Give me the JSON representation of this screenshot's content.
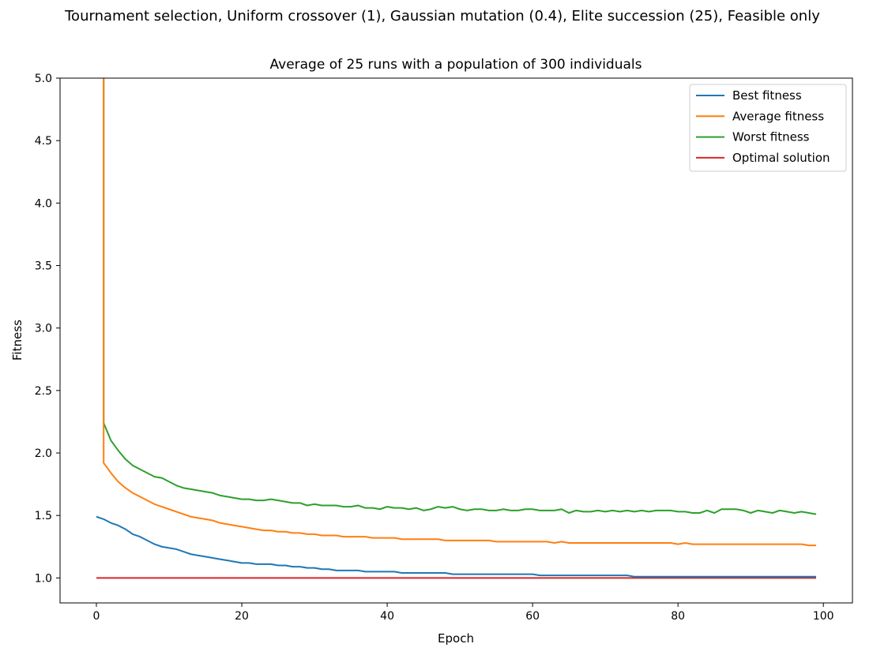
{
  "figure": {
    "suptitle": "Tournament selection, Uniform crossover (1), Gaussian mutation (0.4), Elite succession (25), Feasible only"
  },
  "chart_data": {
    "type": "line",
    "title": "Average of 25 runs with a population of 300 individuals",
    "xlabel": "Epoch",
    "ylabel": "Fitness",
    "xlim": [
      -5,
      104
    ],
    "ylim": [
      0.8,
      5.0
    ],
    "xticks": [
      "0",
      "20",
      "40",
      "60",
      "80",
      "100"
    ],
    "xtick_values": [
      0,
      20,
      40,
      60,
      80,
      100
    ],
    "yticks": [
      "1.0",
      "1.5",
      "2.0",
      "2.5",
      "3.0",
      "3.5",
      "4.0",
      "4.5",
      "5.0"
    ],
    "ytick_values": [
      1.0,
      1.5,
      2.0,
      2.5,
      3.0,
      3.5,
      4.0,
      4.5,
      5.0
    ],
    "grid": false,
    "legend_position": "top-right",
    "series": [
      {
        "name": "Best fitness",
        "color": "#1f77b4",
        "values": [
          1.49,
          1.47,
          1.44,
          1.42,
          1.39,
          1.35,
          1.33,
          1.3,
          1.27,
          1.25,
          1.24,
          1.23,
          1.21,
          1.19,
          1.18,
          1.17,
          1.16,
          1.15,
          1.14,
          1.13,
          1.12,
          1.12,
          1.11,
          1.11,
          1.11,
          1.1,
          1.1,
          1.09,
          1.09,
          1.08,
          1.08,
          1.07,
          1.07,
          1.06,
          1.06,
          1.06,
          1.06,
          1.05,
          1.05,
          1.05,
          1.05,
          1.05,
          1.04,
          1.04,
          1.04,
          1.04,
          1.04,
          1.04,
          1.04,
          1.03,
          1.03,
          1.03,
          1.03,
          1.03,
          1.03,
          1.03,
          1.03,
          1.03,
          1.03,
          1.03,
          1.03,
          1.02,
          1.02,
          1.02,
          1.02,
          1.02,
          1.02,
          1.02,
          1.02,
          1.02,
          1.02,
          1.02,
          1.02,
          1.02,
          1.01,
          1.01,
          1.01,
          1.01,
          1.01,
          1.01,
          1.01,
          1.01,
          1.01,
          1.01,
          1.01,
          1.01,
          1.01,
          1.01,
          1.01,
          1.01,
          1.01,
          1.01,
          1.01,
          1.01,
          1.01,
          1.01,
          1.01,
          1.01,
          1.01,
          1.01
        ]
      },
      {
        "name": "Average fitness",
        "color": "#ff7f0e",
        "values": [
          null,
          1.92,
          1.84,
          1.77,
          1.72,
          1.68,
          1.65,
          1.62,
          1.59,
          1.57,
          1.55,
          1.53,
          1.51,
          1.49,
          1.48,
          1.47,
          1.46,
          1.44,
          1.43,
          1.42,
          1.41,
          1.4,
          1.39,
          1.38,
          1.38,
          1.37,
          1.37,
          1.36,
          1.36,
          1.35,
          1.35,
          1.34,
          1.34,
          1.34,
          1.33,
          1.33,
          1.33,
          1.33,
          1.32,
          1.32,
          1.32,
          1.32,
          1.31,
          1.31,
          1.31,
          1.31,
          1.31,
          1.31,
          1.3,
          1.3,
          1.3,
          1.3,
          1.3,
          1.3,
          1.3,
          1.29,
          1.29,
          1.29,
          1.29,
          1.29,
          1.29,
          1.29,
          1.29,
          1.28,
          1.29,
          1.28,
          1.28,
          1.28,
          1.28,
          1.28,
          1.28,
          1.28,
          1.28,
          1.28,
          1.28,
          1.28,
          1.28,
          1.28,
          1.28,
          1.28,
          1.27,
          1.28,
          1.27,
          1.27,
          1.27,
          1.27,
          1.27,
          1.27,
          1.27,
          1.27,
          1.27,
          1.27,
          1.27,
          1.27,
          1.27,
          1.27,
          1.27,
          1.27,
          1.26,
          1.26
        ]
      },
      {
        "name": "Worst fitness",
        "color": "#2ca02c",
        "values": [
          null,
          2.24,
          2.1,
          2.02,
          1.95,
          1.9,
          1.87,
          1.84,
          1.81,
          1.8,
          1.77,
          1.74,
          1.72,
          1.71,
          1.7,
          1.69,
          1.68,
          1.66,
          1.65,
          1.64,
          1.63,
          1.63,
          1.62,
          1.62,
          1.63,
          1.62,
          1.61,
          1.6,
          1.6,
          1.58,
          1.59,
          1.58,
          1.58,
          1.58,
          1.57,
          1.57,
          1.58,
          1.56,
          1.56,
          1.55,
          1.57,
          1.56,
          1.56,
          1.55,
          1.56,
          1.54,
          1.55,
          1.57,
          1.56,
          1.57,
          1.55,
          1.54,
          1.55,
          1.55,
          1.54,
          1.54,
          1.55,
          1.54,
          1.54,
          1.55,
          1.55,
          1.54,
          1.54,
          1.54,
          1.55,
          1.52,
          1.54,
          1.53,
          1.53,
          1.54,
          1.53,
          1.54,
          1.53,
          1.54,
          1.53,
          1.54,
          1.53,
          1.54,
          1.54,
          1.54,
          1.53,
          1.53,
          1.52,
          1.52,
          1.54,
          1.52,
          1.55,
          1.55,
          1.55,
          1.54,
          1.52,
          1.54,
          1.53,
          1.52,
          1.54,
          1.53,
          1.52,
          1.53,
          1.52,
          1.51
        ]
      },
      {
        "name": "Optimal solution",
        "color": "#d62728",
        "values": [
          1.0,
          1.0,
          1.0,
          1.0,
          1.0,
          1.0,
          1.0,
          1.0,
          1.0,
          1.0,
          1.0,
          1.0,
          1.0,
          1.0,
          1.0,
          1.0,
          1.0,
          1.0,
          1.0,
          1.0,
          1.0,
          1.0,
          1.0,
          1.0,
          1.0,
          1.0,
          1.0,
          1.0,
          1.0,
          1.0,
          1.0,
          1.0,
          1.0,
          1.0,
          1.0,
          1.0,
          1.0,
          1.0,
          1.0,
          1.0,
          1.0,
          1.0,
          1.0,
          1.0,
          1.0,
          1.0,
          1.0,
          1.0,
          1.0,
          1.0,
          1.0,
          1.0,
          1.0,
          1.0,
          1.0,
          1.0,
          1.0,
          1.0,
          1.0,
          1.0,
          1.0,
          1.0,
          1.0,
          1.0,
          1.0,
          1.0,
          1.0,
          1.0,
          1.0,
          1.0,
          1.0,
          1.0,
          1.0,
          1.0,
          1.0,
          1.0,
          1.0,
          1.0,
          1.0,
          1.0,
          1.0,
          1.0,
          1.0,
          1.0,
          1.0,
          1.0,
          1.0,
          1.0,
          1.0,
          1.0,
          1.0,
          1.0,
          1.0,
          1.0,
          1.0,
          1.0,
          1.0,
          1.0,
          1.0,
          1.0
        ]
      }
    ]
  }
}
